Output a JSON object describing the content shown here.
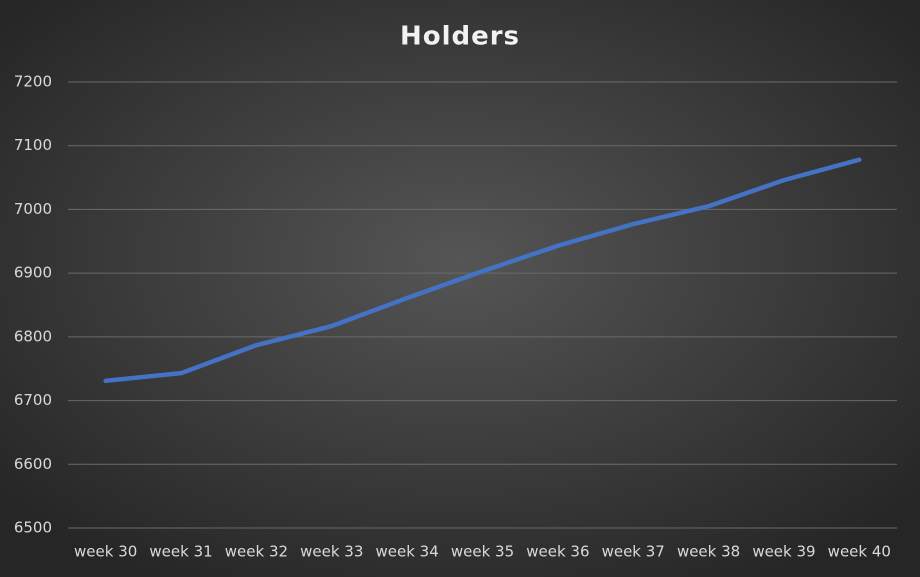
{
  "chart_data": {
    "type": "line",
    "title": "Holders",
    "categories": [
      "week 30",
      "week 31",
      "week 32",
      "week 33",
      "week 34",
      "week 35",
      "week 36",
      "week 37",
      "week 38",
      "week 39",
      "week 40"
    ],
    "series": [
      {
        "name": "Holders",
        "color": "#4472c4",
        "values": [
          6731,
          6743,
          6787,
          6817,
          6861,
          6903,
          6943,
          6977,
          7005,
          7046,
          7078
        ]
      }
    ],
    "ylim": [
      6500,
      7200
    ],
    "yticks": [
      6500,
      6600,
      6700,
      6800,
      6900,
      7000,
      7100,
      7200
    ],
    "grid": true
  }
}
